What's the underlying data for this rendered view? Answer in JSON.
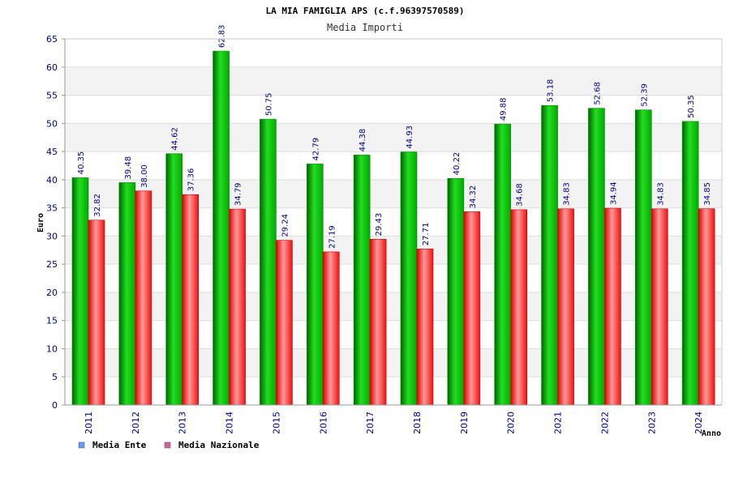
{
  "chart_data": {
    "type": "bar",
    "title": "LA MIA FAMIGLIA APS (c.f.96397570589)",
    "subtitle": "Media Importi",
    "xlabel": "Anno",
    "ylabel": "Euro",
    "ylim": [
      0,
      65
    ],
    "yticks": [
      0,
      5,
      10,
      15,
      20,
      25,
      30,
      35,
      40,
      45,
      50,
      55,
      60,
      65
    ],
    "grid": true,
    "legend_position": "bottom-left",
    "categories": [
      "2011",
      "2012",
      "2013",
      "2014",
      "2015",
      "2016",
      "2017",
      "2018",
      "2019",
      "2020",
      "2021",
      "2022",
      "2023",
      "2024"
    ],
    "series": [
      {
        "name": "Media Ente",
        "color": "#00cc00",
        "legend_color": "#6699ff",
        "values": [
          40.35,
          39.48,
          44.62,
          62.83,
          50.75,
          42.79,
          44.38,
          44.93,
          40.22,
          49.88,
          53.18,
          52.68,
          52.39,
          50.35
        ],
        "labels": [
          "40.35",
          "39.48",
          "44.62",
          "62.83",
          "50.75",
          "42.79",
          "44.38",
          "44.93",
          "40.22",
          "49.88",
          "53.18",
          "52.68",
          "52.39",
          "50.35"
        ]
      },
      {
        "name": "Media Nazionale",
        "color": "#ff2222",
        "legend_color": "#cc6699",
        "values": [
          32.82,
          38.0,
          37.36,
          34.79,
          29.24,
          27.19,
          29.43,
          27.71,
          34.32,
          34.68,
          34.83,
          34.94,
          34.83,
          34.85
        ],
        "labels": [
          "32.82",
          "38.00",
          "37.36",
          "34.79",
          "29.24",
          "27.19",
          "29.43",
          "27.71",
          "34.32",
          "34.68",
          "34.83",
          "34.94",
          "34.83",
          "34.85"
        ]
      }
    ]
  }
}
